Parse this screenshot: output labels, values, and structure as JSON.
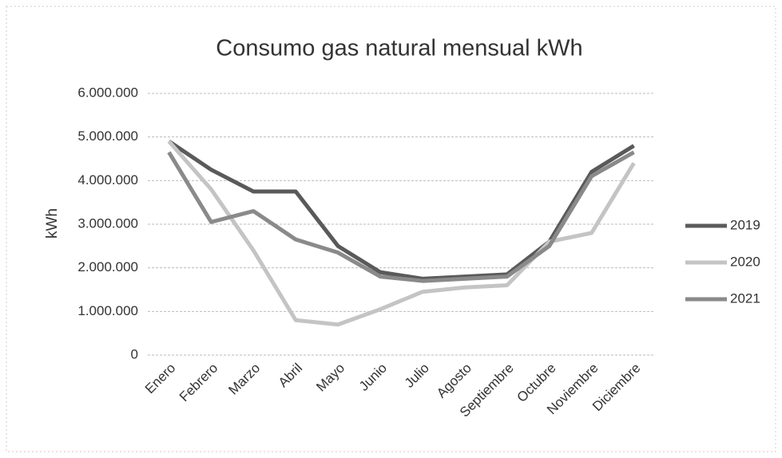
{
  "chart_data": {
    "type": "line",
    "title": "Consumo gas natural mensual kWh",
    "y_label": "kWh",
    "categories": [
      "Enero",
      "Febrero",
      "Marzo",
      "Abril",
      "Mayo",
      "Junio",
      "Julio",
      "Agosto",
      "Septiembre",
      "Octubre",
      "Noviembre",
      "Diciembre"
    ],
    "series": [
      {
        "name": "2019",
        "color": "#5a5a5a",
        "values": [
          4900000,
          4250000,
          3750000,
          3750000,
          2500000,
          1900000,
          1750000,
          1800000,
          1850000,
          2600000,
          4200000,
          4800000
        ]
      },
      {
        "name": "2020",
        "color": "#c4c4c4",
        "values": [
          4900000,
          3800000,
          2400000,
          800000,
          700000,
          1050000,
          1450000,
          1550000,
          1600000,
          2600000,
          2800000,
          4400000
        ]
      },
      {
        "name": "2021",
        "color": "#8a8a8a",
        "values": [
          4650000,
          3050000,
          3300000,
          2650000,
          2350000,
          1800000,
          1700000,
          1750000,
          1800000,
          2500000,
          4100000,
          4650000
        ]
      }
    ],
    "ylim": [
      0,
      6000000
    ],
    "yticks": [
      0,
      {
        "value": 1000000,
        "label": "1.000.000"
      },
      {
        "value": 2000000,
        "label": "2.000.000"
      },
      {
        "value": 3000000,
        "label": "3.000.000"
      },
      {
        "value": 4000000,
        "label": "4.000.000"
      },
      {
        "value": 5000000,
        "label": "5.000.000"
      },
      {
        "value": 6000000,
        "label": "6.000.000"
      }
    ],
    "grid": true,
    "legend": "right"
  }
}
